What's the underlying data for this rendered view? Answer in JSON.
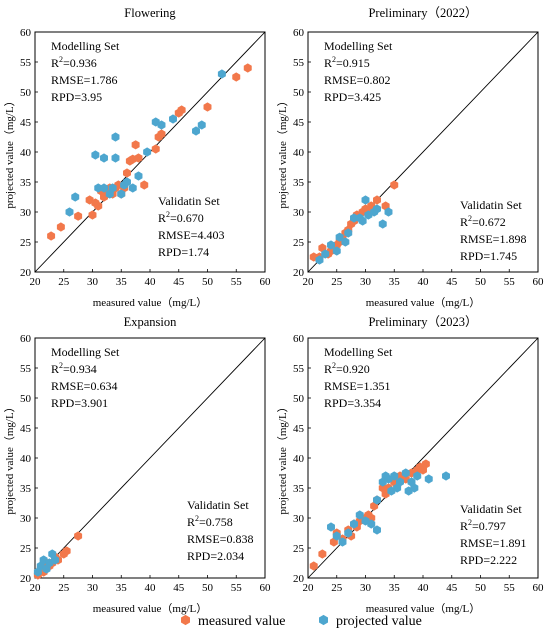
{
  "colors": {
    "measured": "#F2784B",
    "projected": "#4DA6CF"
  },
  "legend": {
    "measured_label": "measured value",
    "projected_label": "projected value"
  },
  "chart_data": [
    {
      "type": "scatter",
      "title": "Flowering",
      "xlabel": "measured value（mg/L）",
      "ylabel": "projected value（mg/L）",
      "xlim": [
        20,
        60
      ],
      "ylim": [
        20,
        60
      ],
      "ticks": [
        "20",
        "25",
        "30",
        "35",
        "40",
        "45",
        "50",
        "55",
        "60"
      ],
      "reference_line": "1:1",
      "modelling": {
        "heading": "Modelling Set",
        "r2": "=0.936",
        "rmse": "RMSE=1.786",
        "rpd": "RPD=3.95"
      },
      "validation": {
        "heading": "Validatin Set",
        "r2": "=0.670",
        "rmse": "RMSE=4.403",
        "rpd": "RPD=1.74"
      },
      "series": [
        {
          "name": "measured value",
          "points": [
            [
              22.8,
              26
            ],
            [
              24.5,
              27.5
            ],
            [
              27.5,
              29.3
            ],
            [
              29.5,
              32
            ],
            [
              30,
              29.5
            ],
            [
              30.5,
              31.5
            ],
            [
              31,
              31
            ],
            [
              31.5,
              33.5
            ],
            [
              32,
              32.5
            ],
            [
              32.5,
              33
            ],
            [
              33,
              34
            ],
            [
              33.5,
              33
            ],
            [
              34,
              34
            ],
            [
              34.5,
              34.5
            ],
            [
              35,
              33
            ],
            [
              35.5,
              34
            ],
            [
              36,
              36.5
            ],
            [
              36.5,
              38.5
            ],
            [
              37,
              38.8
            ],
            [
              37.5,
              41.2
            ],
            [
              38,
              39
            ],
            [
              39,
              34.5
            ],
            [
              41,
              40.5
            ],
            [
              41.5,
              42.5
            ],
            [
              42,
              43
            ],
            [
              45,
              46.5
            ],
            [
              45.5,
              47
            ],
            [
              50,
              47.5
            ],
            [
              55,
              52.5
            ],
            [
              57,
              54
            ]
          ]
        },
        {
          "name": "projected value",
          "points": [
            [
              26,
              30
            ],
            [
              27,
              32.5
            ],
            [
              30.5,
              39.5
            ],
            [
              31,
              34
            ],
            [
              32,
              34
            ],
            [
              32,
              39
            ],
            [
              33,
              33
            ],
            [
              33.5,
              34
            ],
            [
              34,
              42.5
            ],
            [
              34,
              39
            ],
            [
              35,
              33
            ],
            [
              35.5,
              34.5
            ],
            [
              36,
              35
            ],
            [
              37,
              34
            ],
            [
              38,
              36
            ],
            [
              39.5,
              40
            ],
            [
              41,
              45
            ],
            [
              42,
              44.5
            ],
            [
              44,
              45.5
            ],
            [
              48,
              43.5
            ],
            [
              49,
              44.5
            ],
            [
              52.5,
              53
            ]
          ]
        }
      ]
    },
    {
      "type": "scatter",
      "title": "Preliminary（2022）",
      "xlabel": "measured value（mg/L）",
      "ylabel": "projected value（mg/L）",
      "xlim": [
        20,
        60
      ],
      "ylim": [
        20,
        60
      ],
      "ticks": [
        "20",
        "25",
        "30",
        "35",
        "40",
        "45",
        "50",
        "55",
        "60"
      ],
      "reference_line": "1:1",
      "modelling": {
        "heading": "Modelling Set",
        "r2": "=0.915",
        "rmse": "RMSE=0.802",
        "rpd": "RPD=3.425"
      },
      "validation": {
        "heading": "Validatin Set",
        "r2": "=0.672",
        "rmse": "RMSE=1.898",
        "rpd": "RPD=1.745"
      },
      "series": [
        {
          "name": "measured value",
          "points": [
            [
              21,
              22.5
            ],
            [
              22,
              22.5
            ],
            [
              22.5,
              24
            ],
            [
              23.5,
              23
            ],
            [
              24,
              23.5
            ],
            [
              25,
              24.5
            ],
            [
              25.5,
              25
            ],
            [
              26,
              25.5
            ],
            [
              26.5,
              26.5
            ],
            [
              27,
              27
            ],
            [
              27.5,
              28
            ],
            [
              28,
              28.5
            ],
            [
              28.5,
              29.5
            ],
            [
              29.5,
              30
            ],
            [
              30,
              30.5
            ],
            [
              30.5,
              30
            ],
            [
              31,
              31
            ],
            [
              32,
              32
            ],
            [
              33.5,
              31
            ],
            [
              35,
              34.5
            ]
          ]
        },
        {
          "name": "projected value",
          "points": [
            [
              22,
              22
            ],
            [
              23,
              23
            ],
            [
              24,
              24.5
            ],
            [
              25,
              23.5
            ],
            [
              25.5,
              25.8
            ],
            [
              26.5,
              25
            ],
            [
              27,
              26.5
            ],
            [
              28,
              29
            ],
            [
              29,
              29
            ],
            [
              29.5,
              28.5
            ],
            [
              30,
              32
            ],
            [
              30.5,
              29.5
            ],
            [
              31.5,
              30
            ],
            [
              32,
              30.5
            ],
            [
              33,
              28
            ],
            [
              34,
              30
            ]
          ]
        }
      ]
    },
    {
      "type": "scatter",
      "title": "Expansion",
      "xlabel": "measured value（mg/L）",
      "ylabel": "projected value（mg/L）",
      "xlim": [
        20,
        60
      ],
      "ylim": [
        20,
        60
      ],
      "ticks": [
        "20",
        "25",
        "30",
        "35",
        "40",
        "45",
        "50",
        "55",
        "60"
      ],
      "reference_line": "1:1",
      "modelling": {
        "heading": "Modelling Set",
        "r2": "=0.934",
        "rmse": "RMSE=0.634",
        "rpd": "RPD=3.901"
      },
      "validation": {
        "heading": "Validatin Set",
        "r2": "=0.758",
        "rmse": "RMSE=0.838",
        "rpd": "RPD=2.034"
      },
      "series": [
        {
          "name": "measured value",
          "points": [
            [
              20.5,
              20.5
            ],
            [
              21,
              21.5
            ],
            [
              21.5,
              21
            ],
            [
              22,
              22.5
            ],
            [
              22.5,
              22
            ],
            [
              23,
              22.5
            ],
            [
              23.5,
              23.5
            ],
            [
              24,
              23
            ],
            [
              25,
              24
            ],
            [
              25.5,
              24.5
            ],
            [
              27.5,
              27
            ]
          ]
        },
        {
          "name": "projected value",
          "points": [
            [
              20.5,
              21
            ],
            [
              21,
              22
            ],
            [
              21.5,
              23
            ],
            [
              22,
              21.5
            ],
            [
              22.5,
              22.5
            ],
            [
              23,
              24
            ],
            [
              23.5,
              23
            ]
          ]
        }
      ]
    },
    {
      "type": "scatter",
      "title": "Preliminary（2023）",
      "xlabel": "measured value（mg/L）",
      "ylabel": "projected value（mg/L）",
      "xlim": [
        20,
        60
      ],
      "ylim": [
        20,
        60
      ],
      "ticks": [
        "20",
        "25",
        "30",
        "35",
        "40",
        "45",
        "50",
        "55",
        "60"
      ],
      "reference_line": "1:1",
      "modelling": {
        "heading": "Modelling Set",
        "r2": "=0.920",
        "rmse": "RMSE=1.351",
        "rpd": "RPD=3.354"
      },
      "validation": {
        "heading": "Validatin Set",
        "r2": "=0.797",
        "rmse": "RMSE=1.891",
        "rpd": "RPD=2.222"
      },
      "series": [
        {
          "name": "measured value",
          "points": [
            [
              21,
              22
            ],
            [
              22.5,
              24
            ],
            [
              24.5,
              26
            ],
            [
              25,
              27.5
            ],
            [
              26,
              26.5
            ],
            [
              27,
              28
            ],
            [
              27.5,
              27
            ],
            [
              28,
              29
            ],
            [
              28.5,
              28.5
            ],
            [
              29,
              29.5
            ],
            [
              30,
              30
            ],
            [
              30.5,
              30.5
            ],
            [
              31,
              30
            ],
            [
              31.5,
              32
            ],
            [
              32,
              33
            ],
            [
              33,
              35
            ],
            [
              33.5,
              34
            ],
            [
              34,
              35
            ],
            [
              35,
              36
            ],
            [
              35.5,
              35.5
            ],
            [
              36,
              37
            ],
            [
              37,
              36.5
            ],
            [
              38,
              37.5
            ],
            [
              39,
              38
            ],
            [
              39.5,
              38.5
            ],
            [
              40,
              38
            ],
            [
              40.5,
              39
            ]
          ]
        },
        {
          "name": "projected value",
          "points": [
            [
              24,
              28.5
            ],
            [
              25,
              27
            ],
            [
              26,
              26
            ],
            [
              27,
              27.5
            ],
            [
              28,
              29
            ],
            [
              29,
              30.5
            ],
            [
              30,
              29.5
            ],
            [
              31,
              29
            ],
            [
              32,
              28
            ],
            [
              32,
              33
            ],
            [
              33,
              36
            ],
            [
              33.5,
              37
            ],
            [
              34,
              36.5
            ],
            [
              34.5,
              34.5
            ],
            [
              35,
              37
            ],
            [
              35.5,
              35
            ],
            [
              36,
              36
            ],
            [
              37,
              37.5
            ],
            [
              37.5,
              34.5
            ],
            [
              38,
              36
            ],
            [
              38.5,
              35
            ],
            [
              39,
              37
            ],
            [
              41,
              36.5
            ],
            [
              44,
              37
            ]
          ]
        }
      ]
    }
  ]
}
